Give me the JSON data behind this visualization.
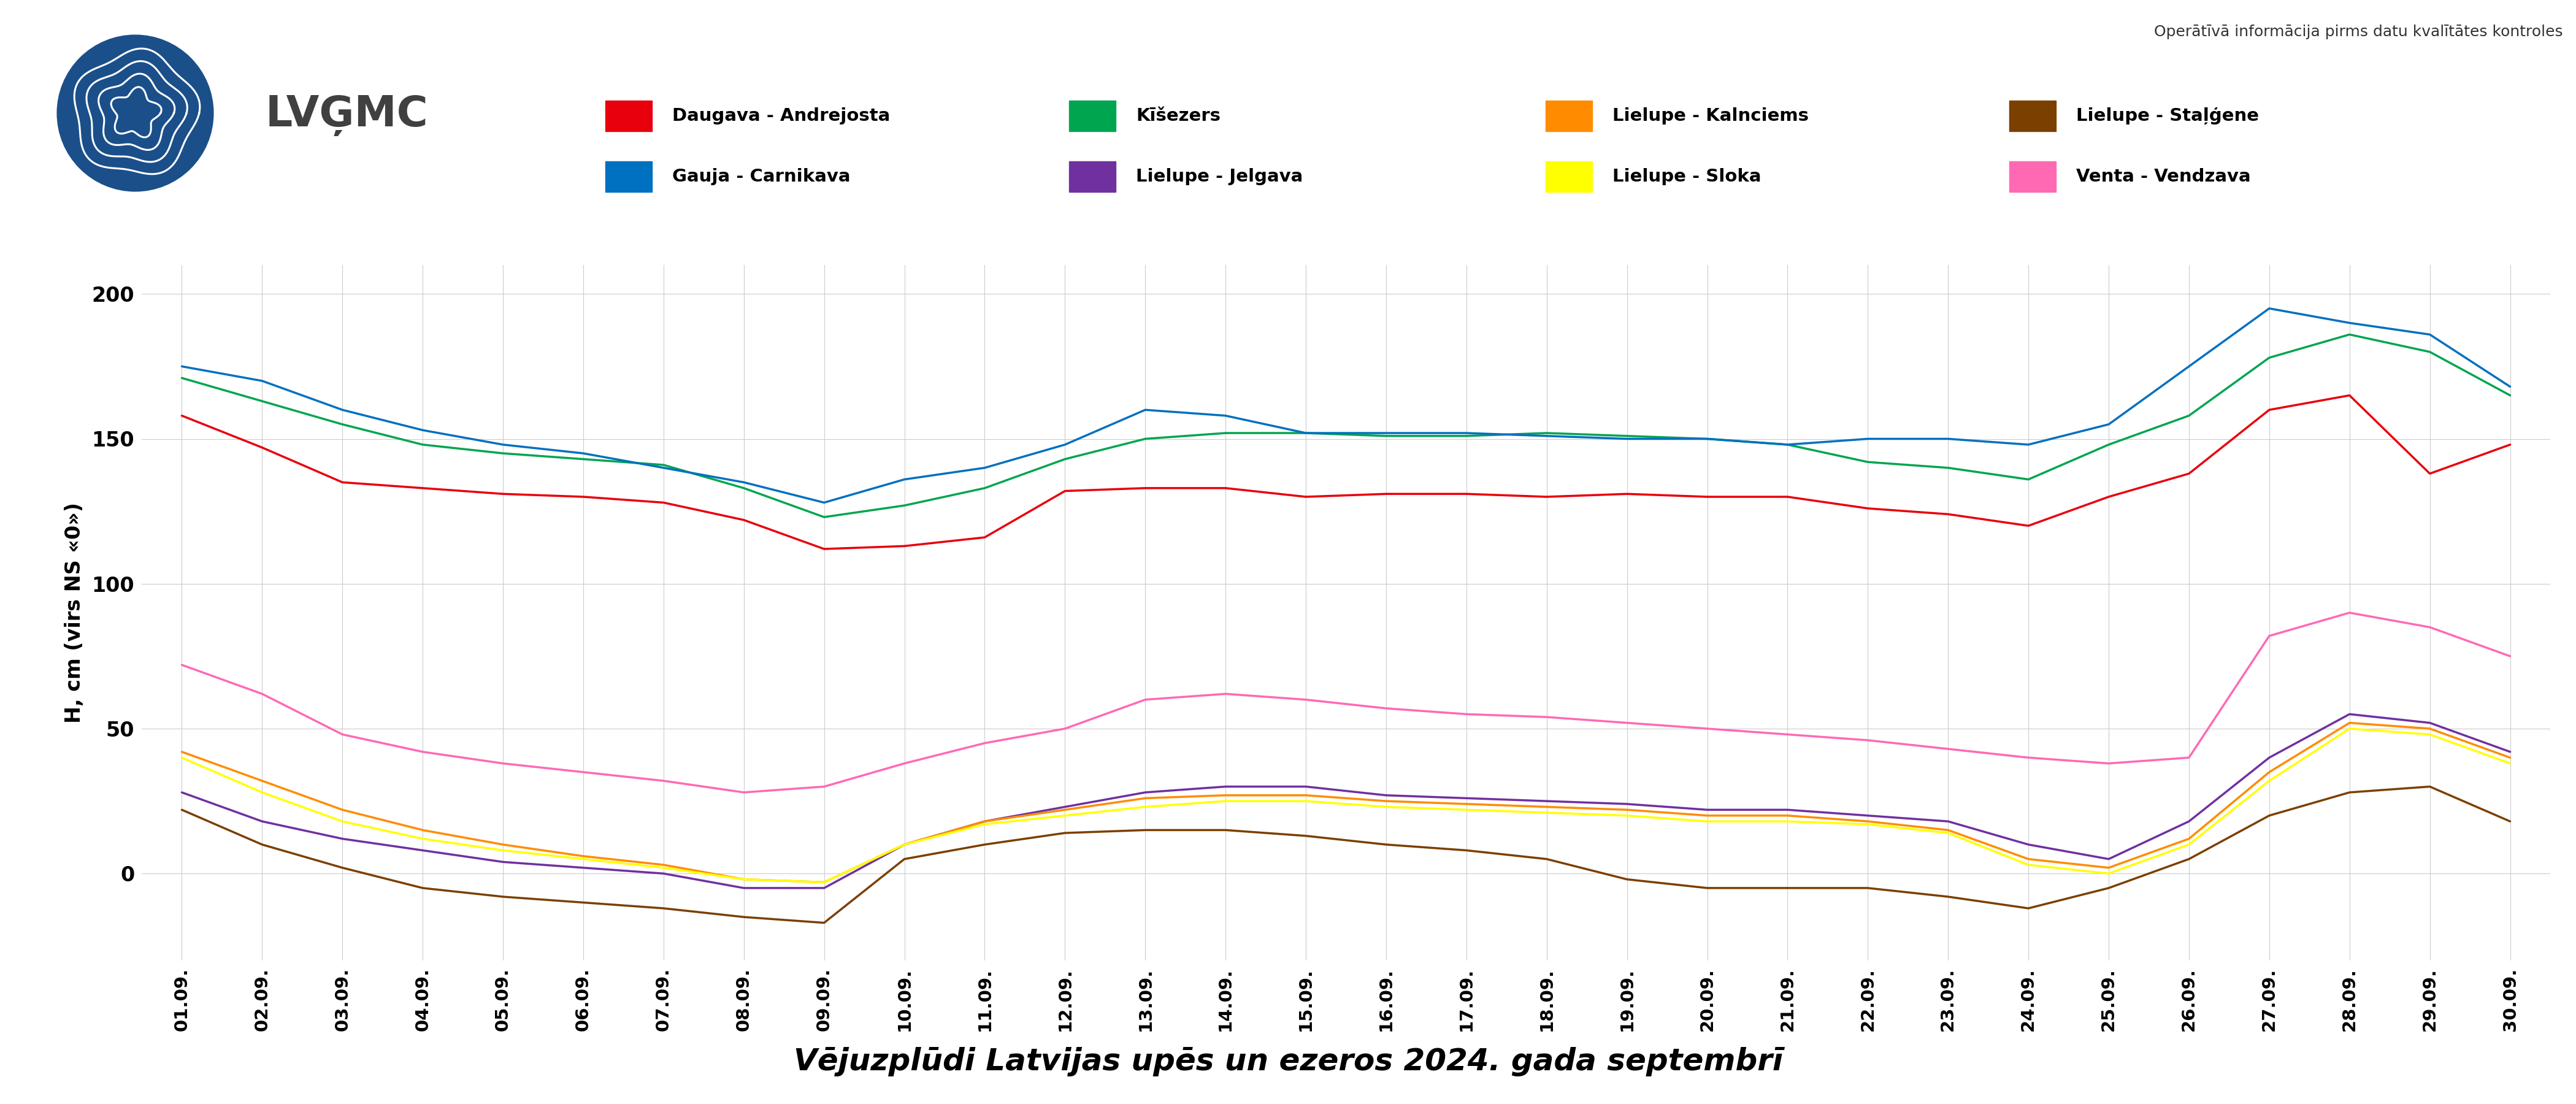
{
  "title": "Vējuzplūdi Latvijas upēs un ezeros 2024. gada septembrī",
  "subtitle": "Operātīvā informācija pirms datu kvalītātes kontroles",
  "ylabel": "H, cm (virs NS «0»)",
  "x_labels": [
    "01.09.",
    "02.09.",
    "03.09.",
    "04.09.",
    "05.09.",
    "06.09.",
    "07.09.",
    "08.09.",
    "09.09.",
    "10.09.",
    "11.09.",
    "12.09.",
    "13.09.",
    "14.09.",
    "15.09.",
    "16.09.",
    "17.09.",
    "18.09.",
    "19.09.",
    "20.09.",
    "21.09.",
    "22.09.",
    "23.09.",
    "24.09.",
    "25.09.",
    "26.09.",
    "27.09.",
    "28.09.",
    "29.09.",
    "30.09."
  ],
  "series": [
    {
      "label": "Daugava - Andrejosta",
      "color": "#e8000d",
      "linewidth": 2.5,
      "values": [
        158,
        147,
        135,
        133,
        131,
        130,
        128,
        122,
        112,
        113,
        116,
        132,
        133,
        133,
        130,
        131,
        131,
        130,
        131,
        130,
        130,
        126,
        124,
        120,
        130,
        138,
        160,
        165,
        138,
        148
      ]
    },
    {
      "label": "Kīšezers",
      "color": "#00a550",
      "linewidth": 2.5,
      "values": [
        171,
        163,
        155,
        148,
        145,
        143,
        141,
        133,
        123,
        127,
        133,
        143,
        150,
        152,
        152,
        151,
        151,
        152,
        151,
        150,
        148,
        142,
        140,
        136,
        148,
        158,
        178,
        186,
        180,
        165
      ]
    },
    {
      "label": "Gauja - Carnikava",
      "color": "#0070c0",
      "linewidth": 2.5,
      "values": [
        175,
        170,
        160,
        153,
        148,
        145,
        140,
        135,
        128,
        136,
        140,
        148,
        160,
        158,
        152,
        152,
        152,
        151,
        150,
        150,
        148,
        150,
        150,
        148,
        155,
        175,
        195,
        190,
        186,
        168
      ]
    },
    {
      "label": "Lielupe - Jelgava",
      "color": "#7030a0",
      "linewidth": 2.5,
      "values": [
        28,
        18,
        12,
        8,
        4,
        2,
        0,
        -5,
        -5,
        10,
        18,
        23,
        28,
        30,
        30,
        27,
        26,
        25,
        24,
        22,
        22,
        20,
        18,
        10,
        5,
        18,
        40,
        55,
        52,
        42
      ]
    },
    {
      "label": "Lielupe - Kalnciems",
      "color": "#ff8c00",
      "linewidth": 2.5,
      "values": [
        42,
        32,
        22,
        15,
        10,
        6,
        3,
        -2,
        -3,
        10,
        18,
        22,
        26,
        27,
        27,
        25,
        24,
        23,
        22,
        20,
        20,
        18,
        15,
        5,
        2,
        12,
        35,
        52,
        50,
        40
      ]
    },
    {
      "label": "Lielupe - Sloka",
      "color": "#ffff00",
      "linewidth": 2.5,
      "values": [
        40,
        28,
        18,
        12,
        8,
        5,
        2,
        -2,
        -3,
        10,
        17,
        20,
        23,
        25,
        25,
        23,
        22,
        21,
        20,
        18,
        18,
        17,
        14,
        3,
        0,
        10,
        32,
        50,
        48,
        38
      ]
    },
    {
      "label": "Lielupe - Staļģene",
      "color": "#7b3f00",
      "linewidth": 2.5,
      "values": [
        22,
        10,
        2,
        -5,
        -8,
        -10,
        -12,
        -15,
        -17,
        5,
        10,
        14,
        15,
        15,
        13,
        10,
        8,
        5,
        -2,
        -5,
        -5,
        -5,
        -8,
        -12,
        -5,
        5,
        20,
        28,
        30,
        18
      ]
    },
    {
      "label": "Venta - Vendzava",
      "color": "#ff69b4",
      "linewidth": 2.5,
      "values": [
        72,
        62,
        48,
        42,
        38,
        35,
        32,
        28,
        30,
        38,
        45,
        50,
        60,
        62,
        60,
        57,
        55,
        54,
        52,
        50,
        48,
        46,
        43,
        40,
        38,
        40,
        82,
        90,
        85,
        75
      ]
    }
  ],
  "ylim_min": -30,
  "ylim_max": 210,
  "yticks": [
    0,
    50,
    100,
    150,
    200
  ],
  "background_color": "#ffffff",
  "grid_color": "#cccccc",
  "legend_row1": [
    {
      "label": "Daugava - Andrejosta",
      "color": "#e8000d"
    },
    {
      "label": "Kīšezers",
      "color": "#00a550"
    },
    {
      "label": "Lielupe - Kalnciems",
      "color": "#ff8c00"
    },
    {
      "label": "Lielupe - Staļģene",
      "color": "#7b3f00"
    }
  ],
  "legend_row2": [
    {
      "label": "Gauja - Carnikava",
      "color": "#0070c0"
    },
    {
      "label": "Lielupe - Jelgava",
      "color": "#7030a0"
    },
    {
      "label": "Lielupe - Sloka",
      "color": "#ffff00"
    },
    {
      "label": "Venta - Vendzava",
      "color": "#ff69b4"
    }
  ],
  "logo_color": "#1a5276",
  "text_color_logo": "#404040",
  "subtitle_color": "#333333"
}
